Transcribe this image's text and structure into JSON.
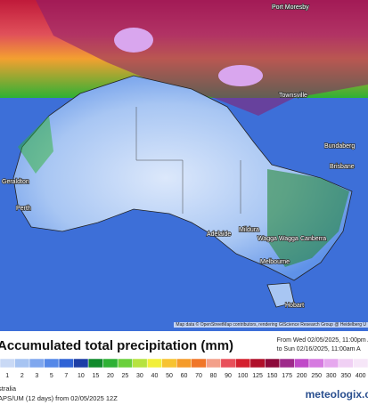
{
  "map": {
    "cities": [
      "Port Moresby",
      "Townsville",
      "Bundaberg",
      "Brisbane",
      "Geraldton",
      "Perth",
      "Adelaide",
      "Mildura",
      "Wagga Wagga",
      "Canberra",
      "Melbourne",
      "Hobart"
    ],
    "attribution": "Map data © OpenStreetMap contributors, rendering GIScience Research Group @ Heidelberg U"
  },
  "header": {
    "title": "Accumulated total precipitation (mm)",
    "from": "From Wed 02/05/2025, 11:00pm A",
    "to": "to Sun 02/16/2025, 11:00am A"
  },
  "legend": {
    "labels": [
      "1",
      "2",
      "3",
      "5",
      "7",
      "10",
      "15",
      "20",
      "25",
      "30",
      "40",
      "50",
      "60",
      "70",
      "80",
      "90",
      "100",
      "125",
      "150",
      "175",
      "200",
      "250",
      "300",
      "350",
      "400"
    ],
    "colors": [
      "#c9d9f5",
      "#a7c4f2",
      "#7fa7ee",
      "#5588e8",
      "#2f63d6",
      "#1c3ea6",
      "#108a2c",
      "#2eb135",
      "#6ad03c",
      "#b6e340",
      "#f2ef3a",
      "#f7c331",
      "#f59b2a",
      "#f07628",
      "#f3a08a",
      "#e8505a",
      "#d4202e",
      "#b0102a",
      "#8c0a3a",
      "#9e2a8a",
      "#c04ac8",
      "#d67ae0",
      "#e6a8ee",
      "#f0d0f4",
      "#f6e6f8"
    ]
  },
  "footer": {
    "region": "stralia",
    "model": "APS/UM (12 days) from 02/05/2025 12Z",
    "brand": "meteologix.c"
  }
}
